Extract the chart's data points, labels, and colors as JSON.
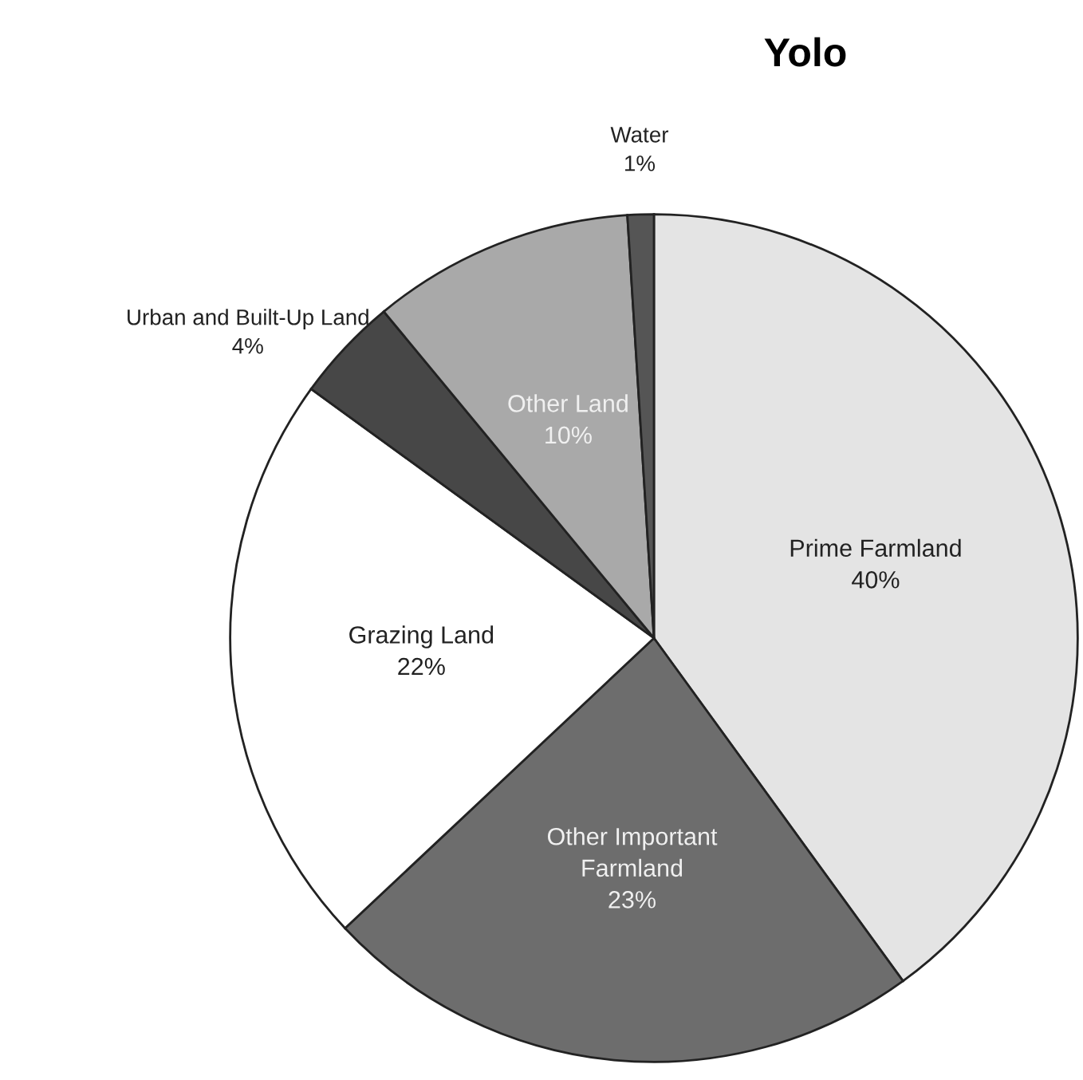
{
  "chart_data": {
    "type": "pie",
    "title": "Yolo",
    "categories": [
      "Prime Farmland",
      "Other Important Farmland",
      "Grazing Land",
      "Urban and Built-Up Land",
      "Other Land",
      "Water"
    ],
    "values": [
      40,
      23,
      22,
      4,
      10,
      1
    ],
    "value_labels": [
      "40%",
      "23%",
      "22%",
      "4%",
      "10%",
      "1%"
    ],
    "colors": [
      "#e4e4e4",
      "#6d6d6d",
      "#ffffff",
      "#474747",
      "#a9a9a9",
      "#555555"
    ],
    "legend": false
  }
}
